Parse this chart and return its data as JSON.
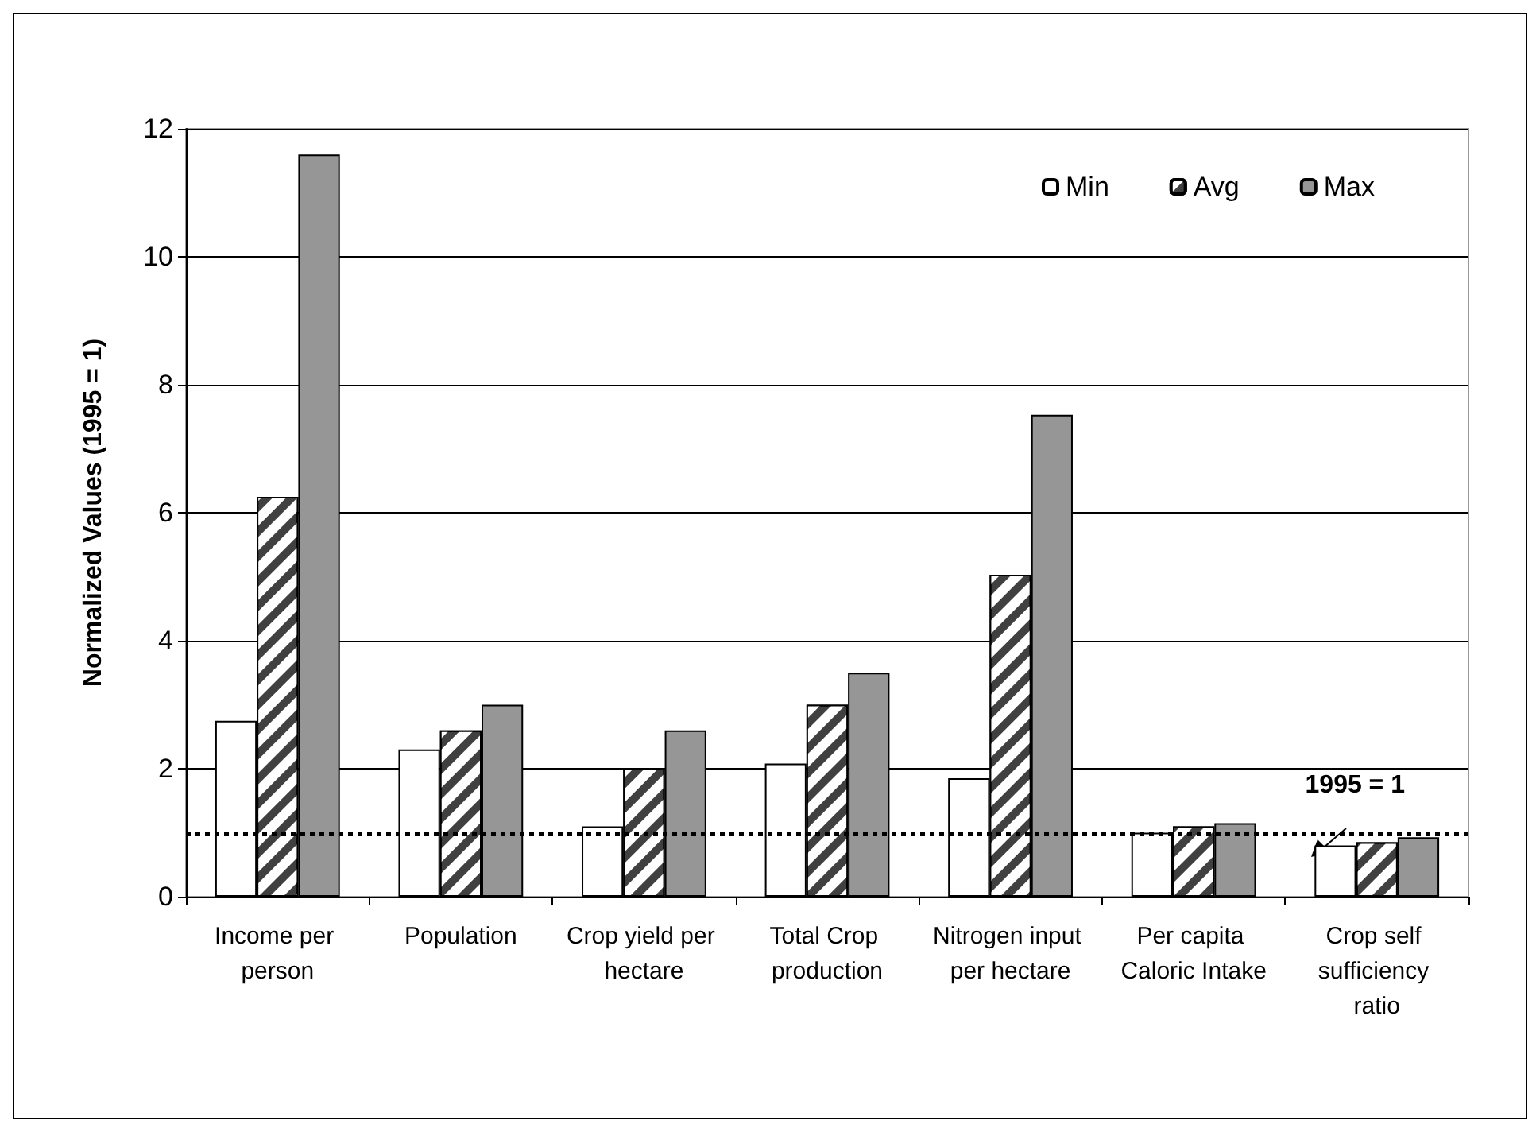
{
  "chart_data": {
    "type": "bar",
    "ylabel": "Normalized Values (1995 = 1)",
    "categories": [
      "Income per person",
      "Population",
      "Crop yield per hectare",
      "Total Crop production",
      "Nitrogen input per hectare",
      "Per capita Caloric Intake",
      "Crop self sufficiency ratio"
    ],
    "series": [
      {
        "name": "Min",
        "color": "#ffffff",
        "values": [
          2.75,
          2.3,
          1.1,
          2.08,
          1.85,
          1.0,
          0.8
        ]
      },
      {
        "name": "Avg",
        "color": "#404040",
        "values": [
          6.25,
          2.6,
          2.0,
          3.0,
          5.03,
          1.1,
          0.85
        ]
      },
      {
        "name": "Max",
        "color": "#969696",
        "values": [
          11.6,
          3.0,
          2.6,
          3.5,
          7.53,
          1.15,
          0.93
        ]
      }
    ],
    "ylim": [
      0,
      12
    ],
    "yticks": [
      0,
      2,
      4,
      6,
      8,
      10,
      12
    ],
    "grid": "y",
    "legend": "top right",
    "ref_lines": [
      {
        "axis": "y",
        "value": 1,
        "label": "1995 = 1",
        "line_style": "dotted",
        "color": "#000000"
      }
    ]
  }
}
